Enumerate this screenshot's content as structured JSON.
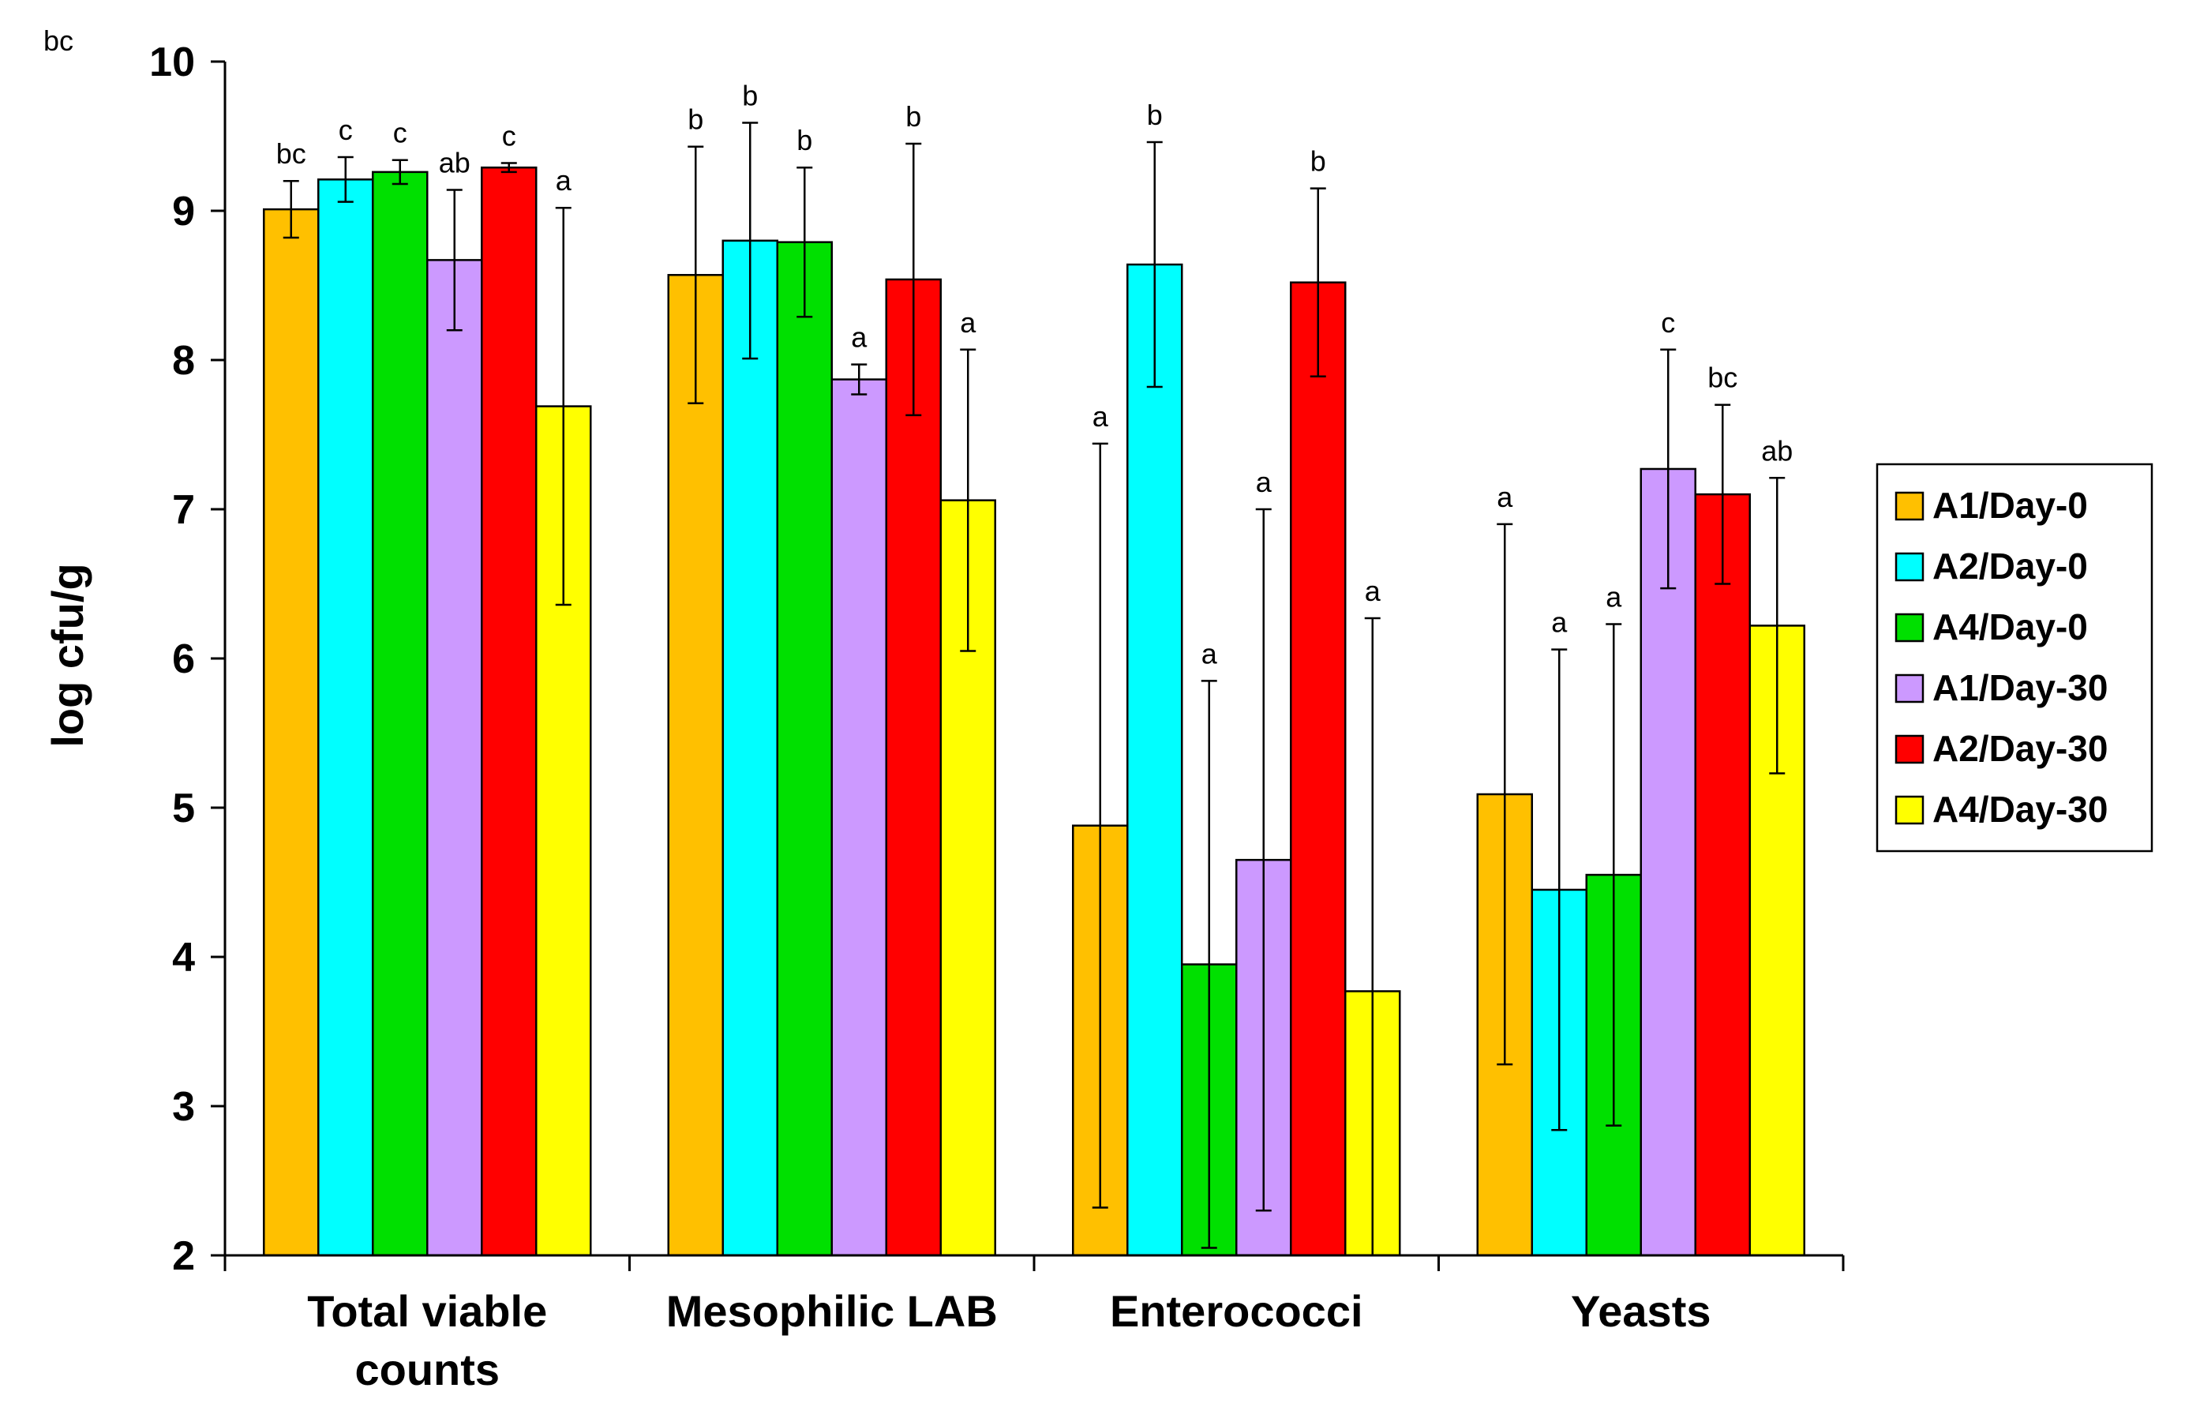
{
  "chart_data": {
    "type": "bar",
    "corner_label": "bc",
    "ylabel": "log cfu/g",
    "ylim": [
      2,
      10
    ],
    "yticks": [
      2,
      3,
      4,
      5,
      6,
      7,
      8,
      9,
      10
    ],
    "categories": [
      [
        "Total viable",
        "counts"
      ],
      [
        "Mesophilic LAB"
      ],
      [
        "Enterococci"
      ],
      [
        "Yeasts"
      ]
    ],
    "legend_position": "right",
    "series": [
      {
        "name": "A1/Day-0",
        "color": "#FFC000",
        "values": [
          9.01,
          8.57,
          4.88,
          5.09
        ],
        "errors": [
          0.19,
          0.86,
          2.56,
          1.81
        ],
        "letters": [
          "bc",
          "b",
          "a",
          "a"
        ]
      },
      {
        "name": "A2/Day-0",
        "color": "#00FFFF",
        "values": [
          9.21,
          8.8,
          8.64,
          4.45
        ],
        "errors": [
          0.15,
          0.79,
          0.82,
          1.61
        ],
        "letters": [
          "c",
          "b",
          "b",
          "a"
        ]
      },
      {
        "name": "A4/Day-0",
        "color": "#00E000",
        "values": [
          9.26,
          8.79,
          3.95,
          4.55
        ],
        "errors": [
          0.08,
          0.5,
          1.9,
          1.68
        ],
        "letters": [
          "c",
          "b",
          "a",
          "a"
        ]
      },
      {
        "name": "A1/Day-30",
        "color": "#CC99FF",
        "values": [
          8.67,
          7.87,
          4.65,
          7.27
        ],
        "errors": [
          0.47,
          0.1,
          2.35,
          0.8
        ],
        "letters": [
          "ab",
          "a",
          "a",
          "c"
        ]
      },
      {
        "name": "A2/Day-30",
        "color": "#FF0000",
        "values": [
          9.29,
          8.54,
          8.52,
          7.1
        ],
        "errors": [
          0.03,
          0.91,
          0.63,
          0.6
        ],
        "letters": [
          "c",
          "b",
          "b",
          "bc"
        ]
      },
      {
        "name": "A4/Day-30",
        "color": "#FFFF00",
        "values": [
          7.69,
          7.06,
          3.77,
          6.22
        ],
        "errors": [
          1.33,
          1.01,
          2.5,
          0.99
        ],
        "letters": [
          "a",
          "a",
          "a",
          "ab"
        ]
      }
    ]
  }
}
